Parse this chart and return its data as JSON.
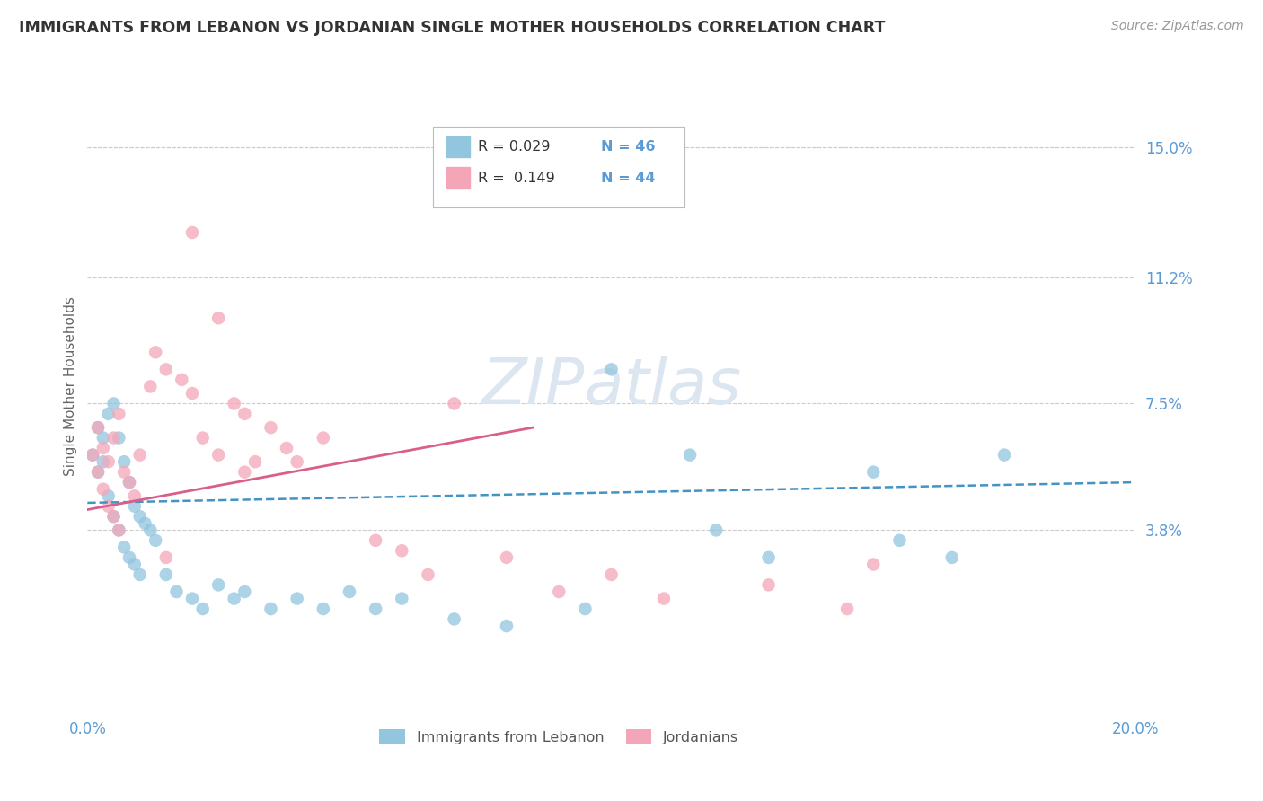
{
  "title": "IMMIGRANTS FROM LEBANON VS JORDANIAN SINGLE MOTHER HOUSEHOLDS CORRELATION CHART",
  "source": "Source: ZipAtlas.com",
  "ylabel": "Single Mother Households",
  "xlim": [
    0.0,
    0.2
  ],
  "ylim": [
    -0.015,
    0.175
  ],
  "yticks": [
    0.038,
    0.075,
    0.112,
    0.15
  ],
  "ytick_labels": [
    "3.8%",
    "7.5%",
    "11.2%",
    "15.0%"
  ],
  "legend_r1": "R = 0.029",
  "legend_n1": "N = 46",
  "legend_r2": "R =  0.149",
  "legend_n2": "N = 44",
  "blue_color": "#92c5de",
  "pink_color": "#f4a6b8",
  "pink_line_color": "#d95f8a",
  "blue_line_color": "#4393c3",
  "title_color": "#333333",
  "axis_label_color": "#666666",
  "tick_color": "#5b9bd5",
  "grid_color": "#cccccc",
  "watermark": "ZIPatlas",
  "watermark_color": "#dce6f0",
  "blue_scatter_x": [
    0.001,
    0.002,
    0.002,
    0.003,
    0.003,
    0.004,
    0.004,
    0.005,
    0.005,
    0.006,
    0.006,
    0.007,
    0.007,
    0.008,
    0.008,
    0.009,
    0.009,
    0.01,
    0.01,
    0.011,
    0.012,
    0.013,
    0.015,
    0.017,
    0.02,
    0.022,
    0.025,
    0.028,
    0.03,
    0.035,
    0.04,
    0.045,
    0.05,
    0.055,
    0.06,
    0.07,
    0.08,
    0.095,
    0.1,
    0.115,
    0.12,
    0.13,
    0.15,
    0.155,
    0.165,
    0.175
  ],
  "blue_scatter_y": [
    0.06,
    0.068,
    0.055,
    0.065,
    0.058,
    0.072,
    0.048,
    0.075,
    0.042,
    0.065,
    0.038,
    0.058,
    0.033,
    0.052,
    0.03,
    0.045,
    0.028,
    0.042,
    0.025,
    0.04,
    0.038,
    0.035,
    0.025,
    0.02,
    0.018,
    0.015,
    0.022,
    0.018,
    0.02,
    0.015,
    0.018,
    0.015,
    0.02,
    0.015,
    0.018,
    0.012,
    0.01,
    0.015,
    0.085,
    0.06,
    0.038,
    0.03,
    0.055,
    0.035,
    0.03,
    0.06
  ],
  "pink_scatter_x": [
    0.001,
    0.002,
    0.002,
    0.003,
    0.003,
    0.004,
    0.004,
    0.005,
    0.005,
    0.006,
    0.006,
    0.007,
    0.008,
    0.009,
    0.01,
    0.012,
    0.013,
    0.015,
    0.018,
    0.02,
    0.022,
    0.025,
    0.028,
    0.03,
    0.03,
    0.032,
    0.035,
    0.038,
    0.04,
    0.045,
    0.055,
    0.06,
    0.065,
    0.07,
    0.08,
    0.09,
    0.1,
    0.11,
    0.13,
    0.145,
    0.15,
    0.02,
    0.025,
    0.015
  ],
  "pink_scatter_y": [
    0.06,
    0.068,
    0.055,
    0.062,
    0.05,
    0.058,
    0.045,
    0.065,
    0.042,
    0.072,
    0.038,
    0.055,
    0.052,
    0.048,
    0.06,
    0.08,
    0.09,
    0.085,
    0.082,
    0.078,
    0.065,
    0.06,
    0.075,
    0.072,
    0.055,
    0.058,
    0.068,
    0.062,
    0.058,
    0.065,
    0.035,
    0.032,
    0.025,
    0.075,
    0.03,
    0.02,
    0.025,
    0.018,
    0.022,
    0.015,
    0.028,
    0.125,
    0.1,
    0.03
  ],
  "blue_trendline_x": [
    0.0,
    0.2
  ],
  "blue_trendline_y": [
    0.046,
    0.052
  ],
  "pink_trendline_x": [
    0.0,
    0.085
  ],
  "pink_trendline_y": [
    0.044,
    0.068
  ]
}
